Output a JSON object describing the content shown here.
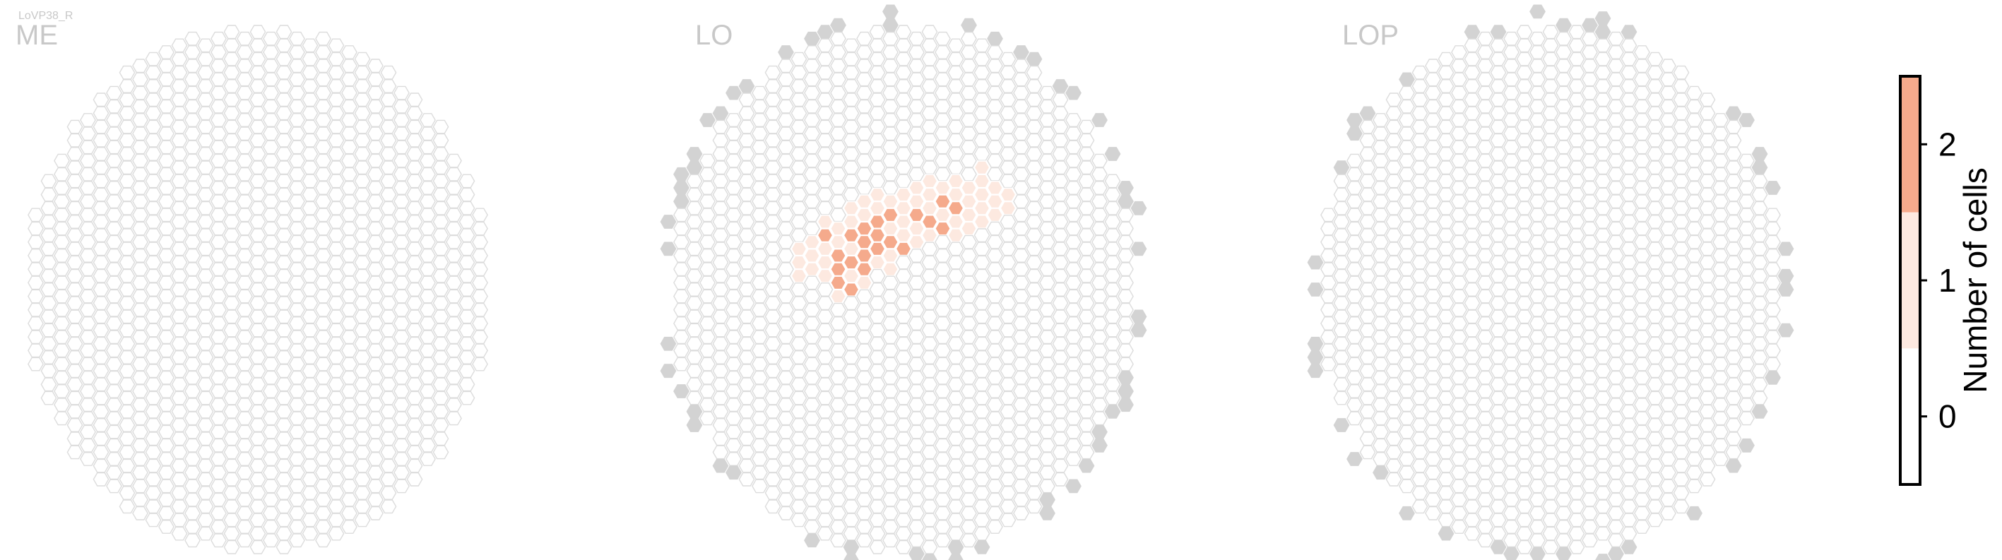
{
  "figure_label": "LoVP38_R",
  "chart_data": [
    {
      "type": "heatmap",
      "title": "ME",
      "grid": "hexagonal column map",
      "counts": {}
    },
    {
      "type": "heatmap",
      "title": "LO",
      "grid": "hexagonal column map",
      "counts": {
        "4,-3": 1,
        "4,-2": 1,
        "4,-1": 1,
        "5,-4": 1,
        "5,-3": 1,
        "5,-2": 1,
        "6,-5": 1,
        "6,-4": 2,
        "6,-3": 1,
        "6,-2": 1,
        "6,-1": 1,
        "7,-5": 1,
        "7,-4": 1,
        "7,-3": 2,
        "7,-2": 2,
        "7,-1": 2,
        "7,0": 1,
        "8,-6": 1,
        "8,-5": 1,
        "8,-4": 2,
        "8,-3": 1,
        "8,-2": 2,
        "8,-1": 1,
        "8,0": 2,
        "9,-7": 1,
        "9,-6": 1,
        "9,-5": 2,
        "9,-4": 2,
        "9,-3": 2,
        "9,-2": 2,
        "9,-1": 1,
        "10,-7": 1,
        "10,-6": 1,
        "10,-5": 2,
        "10,-4": 2,
        "10,-3": 2,
        "10,-2": 1,
        "11,-7": 1,
        "11,-6": 2,
        "11,-5": 1,
        "11,-4": 2,
        "11,-3": 1,
        "11,-2": 1,
        "12,-7": 1,
        "12,-6": 1,
        "12,-5": 1,
        "12,-4": 1,
        "12,-3": 2,
        "13,-8": 1,
        "13,-7": 1,
        "13,-6": 2,
        "13,-5": 1,
        "13,-4": 1,
        "14,-8": 1,
        "14,-7": 1,
        "14,-6": 1,
        "14,-5": 2,
        "14,-4": 1,
        "15,-8": 1,
        "15,-7": 2,
        "15,-6": 1,
        "15,-5": 2,
        "16,-8": 1,
        "16,-7": 1,
        "16,-6": 2,
        "16,-5": 1,
        "16,-4": 1,
        "17,-8": 1,
        "17,-7": 1,
        "17,-6": 1,
        "17,-5": 1,
        "18,-9": 1,
        "18,-8": 1,
        "18,-7": 1,
        "18,-6": 1,
        "18,-5": 1,
        "19,-8": 1,
        "19,-7": 1,
        "19,-6": 1,
        "20,-7": 1,
        "20,-6": 1
      }
    },
    {
      "type": "heatmap",
      "title": "LOP",
      "grid": "hexagonal column map",
      "counts": {}
    }
  ],
  "colorbar": {
    "label": "Number of cells",
    "ticks": [
      "0",
      "1",
      "2"
    ],
    "range": [
      -0.5,
      2.5
    ],
    "colors": {
      "0": "#ffffff",
      "1": "#fde9e0",
      "2": "#f5aa8c"
    }
  },
  "colors": {
    "empty_edge": "#dcdcdc",
    "outside_fill": "#d3d3d3",
    "count_1": "#fde9e0",
    "count_2": "#f5aa8c",
    "title": "#c8c8c8"
  }
}
